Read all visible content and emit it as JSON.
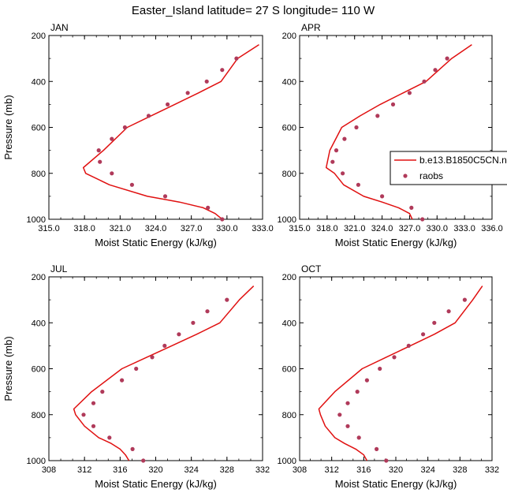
{
  "title": "Easter_Island  latitude= 27 S longitude= 110 W",
  "legend": {
    "model_label": "b.e13.B1850C5CN.n",
    "obs_label": "raobs",
    "colors": {
      "model": "#e01010",
      "obs": "#b03a5a"
    }
  },
  "chart_data": [
    {
      "type": "line",
      "panel_label": "JAN",
      "xlabel": "Moist Static Energy (kJ/kg)",
      "ylabel": "Pressure (mb)",
      "xlim": [
        315.0,
        333.0
      ],
      "xticks": [
        "315.0",
        "318.0",
        "321.0",
        "324.0",
        "327.0",
        "330.0",
        "333.0"
      ],
      "ylim": [
        1000,
        200
      ],
      "yticks": [
        "200",
        "400",
        "600",
        "800",
        "1000"
      ],
      "series": [
        {
          "x": [
            329.6,
            329.0,
            328.0,
            326.0,
            323.3,
            320.1,
            318.1,
            317.9,
            319.6,
            321.6,
            323.6,
            325.6,
            327.6,
            329.5,
            330.9,
            332.7
          ],
          "y": [
            1000,
            975,
            950,
            925,
            900,
            850,
            800,
            775,
            700,
            600,
            550,
            500,
            450,
            400,
            300,
            240
          ]
        },
        {
          "x": [
            329.6,
            328.4,
            324.8,
            322.0,
            320.3,
            319.3,
            319.2,
            320.3,
            321.4,
            323.4,
            325.0,
            326.7,
            328.3,
            329.6,
            330.8
          ],
          "y": [
            1000,
            950,
            900,
            850,
            800,
            750,
            700,
            650,
            600,
            550,
            500,
            450,
            400,
            350,
            300
          ]
        }
      ]
    },
    {
      "type": "line",
      "panel_label": "APR",
      "xlabel": "Moist Static Energy (kJ/kg)",
      "ylabel": "",
      "xlim": [
        315.0,
        336.0
      ],
      "xticks": [
        "315.0",
        "318.0",
        "321.0",
        "324.0",
        "327.0",
        "330.0",
        "333.0",
        "336.0"
      ],
      "ylim": [
        1000,
        200
      ],
      "yticks": [
        "200",
        "400",
        "600",
        "800",
        "1000"
      ],
      "series": [
        {
          "x": [
            327.3,
            327.0,
            325.8,
            324.0,
            322.0,
            319.8,
            318.8,
            317.9,
            318.3,
            319.6,
            321.6,
            323.8,
            326.3,
            328.8,
            331.6,
            333.8
          ],
          "y": [
            1000,
            975,
            950,
            925,
            900,
            850,
            800,
            775,
            700,
            600,
            550,
            500,
            450,
            400,
            300,
            240
          ]
        },
        {
          "x": [
            328.4,
            327.2,
            324.0,
            321.4,
            319.7,
            318.6,
            319.0,
            319.9,
            321.2,
            323.5,
            325.2,
            327.0,
            328.6,
            329.8,
            331.1
          ],
          "y": [
            1000,
            950,
            900,
            850,
            800,
            750,
            700,
            650,
            600,
            550,
            500,
            450,
            400,
            350,
            300
          ]
        }
      ]
    },
    {
      "type": "line",
      "panel_label": "JUL",
      "xlabel": "Moist Static Energy (kJ/kg)",
      "ylabel": "Pressure (mb)",
      "xlim": [
        308,
        332
      ],
      "xticks": [
        "308",
        "312",
        "316",
        "320",
        "324",
        "328",
        "332"
      ],
      "ylim": [
        1000,
        200
      ],
      "yticks": [
        "200",
        "400",
        "600",
        "800",
        "1000"
      ],
      "series": [
        {
          "x": [
            317.0,
            316.6,
            316.0,
            315.0,
            313.6,
            312.0,
            311.0,
            310.8,
            312.8,
            316.2,
            319.0,
            321.8,
            324.6,
            327.2,
            329.4,
            331.0
          ],
          "y": [
            1000,
            975,
            950,
            925,
            900,
            850,
            800,
            775,
            700,
            600,
            550,
            500,
            450,
            400,
            300,
            240
          ]
        },
        {
          "x": [
            318.6,
            317.4,
            314.8,
            313.0,
            311.9,
            313.0,
            314.0,
            316.2,
            317.8,
            319.6,
            321.0,
            322.6,
            324.2,
            325.8,
            328.0
          ],
          "y": [
            1000,
            950,
            900,
            850,
            800,
            750,
            700,
            650,
            600,
            550,
            500,
            450,
            400,
            350,
            300
          ]
        }
      ]
    },
    {
      "type": "line",
      "panel_label": "OCT",
      "xlabel": "Moist Static Energy (kJ/kg)",
      "ylabel": "",
      "xlim": [
        308,
        332
      ],
      "xticks": [
        "308",
        "312",
        "316",
        "320",
        "324",
        "328",
        "332"
      ],
      "ylim": [
        1000,
        200
      ],
      "yticks": [
        "200",
        "400",
        "600",
        "800",
        "1000"
      ],
      "series": [
        {
          "x": [
            316.4,
            316.0,
            315.0,
            313.6,
            312.4,
            311.2,
            310.6,
            310.4,
            312.4,
            315.8,
            318.8,
            321.8,
            324.8,
            327.4,
            329.6,
            330.8
          ],
          "y": [
            1000,
            975,
            950,
            925,
            900,
            850,
            800,
            775,
            700,
            600,
            550,
            500,
            450,
            400,
            300,
            240
          ]
        },
        {
          "x": [
            318.8,
            317.6,
            315.4,
            314.0,
            313.0,
            314.0,
            315.2,
            316.4,
            318.0,
            319.8,
            321.6,
            323.4,
            324.8,
            326.6,
            328.6
          ],
          "y": [
            1000,
            950,
            900,
            850,
            800,
            750,
            700,
            650,
            600,
            550,
            500,
            450,
            400,
            350,
            300
          ]
        }
      ]
    }
  ]
}
